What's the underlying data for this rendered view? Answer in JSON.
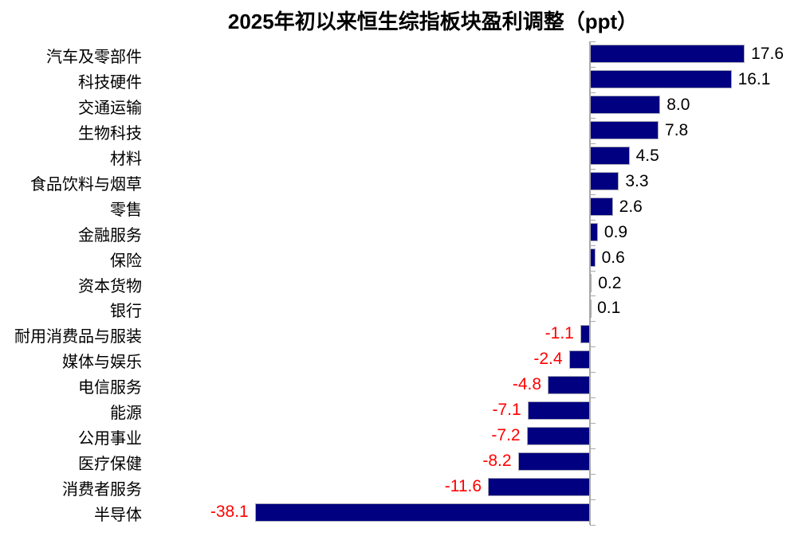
{
  "chart_data": {
    "type": "bar",
    "orientation": "horizontal",
    "title": "2025年初以来恒生综指板块盈利调整（ppt）",
    "xlabel": "",
    "ylabel": "",
    "categories": [
      "汽车及零部件",
      "科技硬件",
      "交通运输",
      "生物科技",
      "材料",
      "食品饮料与烟草",
      "零售",
      "金融服务",
      "保险",
      "资本货物",
      "银行",
      "耐用消费品与服装",
      "媒体与娱乐",
      "电信服务",
      "能源",
      "公用事业",
      "医疗保健",
      "消费者服务",
      "半导体"
    ],
    "values": [
      17.6,
      16.1,
      8.0,
      7.8,
      4.5,
      3.3,
      2.6,
      0.9,
      0.6,
      0.2,
      0.1,
      -1.1,
      -2.4,
      -4.8,
      -7.1,
      -7.2,
      -8.2,
      -11.6,
      -38.1
    ],
    "value_labels": [
      "17.6",
      "16.1",
      "8.0",
      "7.8",
      "4.5",
      "3.3",
      "2.6",
      "0.9",
      "0.6",
      "0.2",
      "0.1",
      "-1.1",
      "-2.4",
      "-4.8",
      "-7.1",
      "-7.2",
      "-8.2",
      "-11.6",
      "-38.1"
    ],
    "xlim": [
      -40,
      20
    ],
    "grid": false,
    "legend": null,
    "data_labels_shown": true,
    "colors": {
      "bar": "#000080",
      "positive_label": "#000000",
      "negative_label": "#FF0000",
      "axis": "#a9a9a9",
      "title": "#000000",
      "background": "#FFFFFF"
    }
  }
}
